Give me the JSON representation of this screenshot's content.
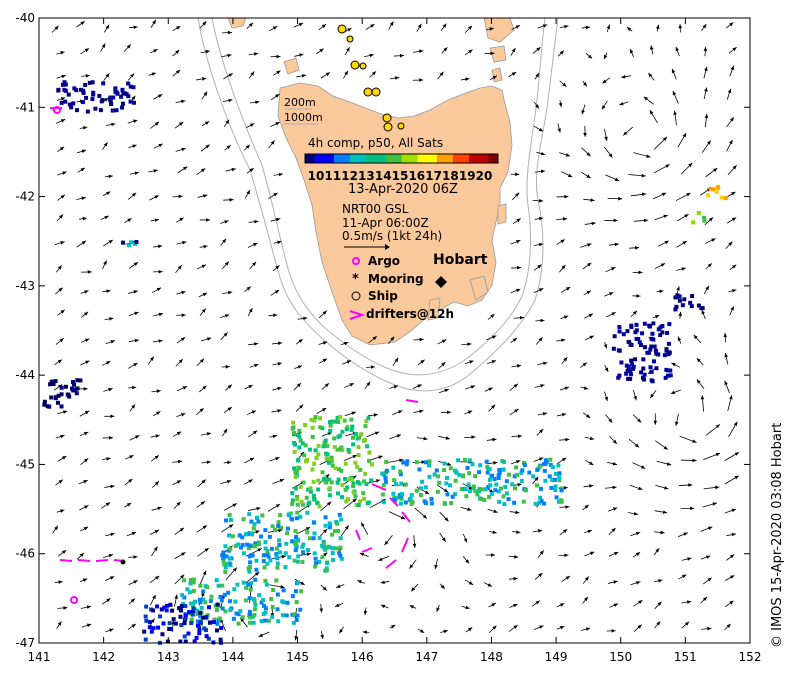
{
  "map": {
    "lon_range": [
      141,
      152
    ],
    "lat_range": [
      -47,
      -40
    ],
    "x_ticks": [
      "141",
      "142",
      "143",
      "144",
      "145",
      "146",
      "147",
      "148",
      "149",
      "150",
      "151",
      "152"
    ],
    "y_ticks": [
      "-40",
      "-41",
      "-42",
      "-43",
      "-44",
      "-45",
      "-46",
      "-47"
    ],
    "land_color": "#f9c99b",
    "frame_color": "#000000"
  },
  "legend": {
    "depth_200": "200m",
    "depth_1000": "1000m",
    "colorbar_title": "4h comp, p50, All Sats",
    "colorbar_ticks": [
      "10",
      "11",
      "12",
      "13",
      "14",
      "15",
      "16",
      "17",
      "18",
      "19",
      "20"
    ],
    "date": "13-Apr-2020 06Z",
    "product": "NRT00 GSL",
    "product_time": "11-Apr 06:00Z",
    "scale": "0.5m/s (1kt 24h)",
    "argo": "Argo",
    "mooring": "Mooring",
    "ship": "Ship",
    "drifters": "drifters@12h"
  },
  "labels": {
    "hobart": "Hobart"
  },
  "credit": {
    "text": "© IMOS 15-Apr-2020 03:08 Hobart"
  },
  "colors": {
    "argo": "#ff00ff",
    "drifter": "#ff00ff",
    "ship_fill": "#ffd700",
    "colorbar": [
      "#000080",
      "#0000ff",
      "#0080ff",
      "#00c0c0",
      "#00c080",
      "#40c040",
      "#a0e000",
      "#ffff00",
      "#ffa000",
      "#ff4000",
      "#c00000",
      "#800000"
    ]
  }
}
